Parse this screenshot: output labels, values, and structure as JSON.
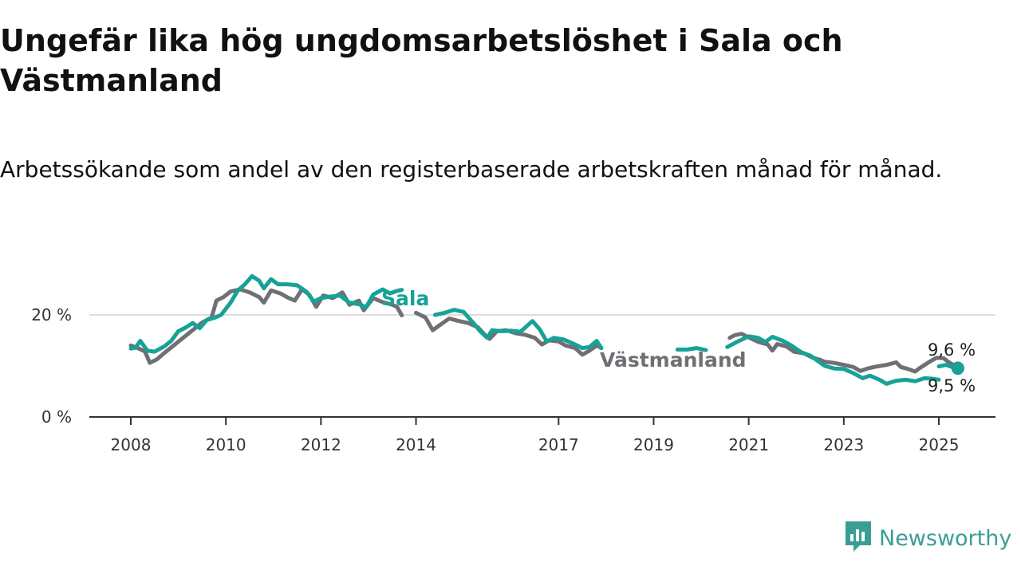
{
  "title": "Ungefär lika hög ungdomsarbetslöshet i Sala och Västmanland",
  "subtitle": "Arbetssökande som andel av den registerbaserade arbetskraften månad för månad.",
  "brand": {
    "name": "Newsworthy",
    "icon": "newsworthy-logo-icon",
    "color": "#3a9e95"
  },
  "chart_data": {
    "type": "line",
    "title": "Ungefär lika hög ungdomsarbetslöshet i Sala och Västmanland",
    "subtitle": "Arbetssökande som andel av den registerbaserade arbetskraften månad för månad.",
    "xlabel": "",
    "ylabel": "",
    "x_range": [
      2008,
      2026.2
    ],
    "ylim": [
      0,
      30
    ],
    "grid": true,
    "legend": "direct labels on lines",
    "x_ticks": [
      {
        "value": 2008,
        "label": "2008"
      },
      {
        "value": 2010,
        "label": "2010"
      },
      {
        "value": 2012,
        "label": "2012"
      },
      {
        "value": 2014,
        "label": "2014"
      },
      {
        "value": 2017,
        "label": "2017"
      },
      {
        "value": 2019,
        "label": "2019"
      },
      {
        "value": 2021,
        "label": "2021"
      },
      {
        "value": 2023,
        "label": "2023"
      },
      {
        "value": 2025,
        "label": "2025"
      }
    ],
    "y_ticks": [
      {
        "value": 0,
        "label": "0 %"
      },
      {
        "value": 20,
        "label": "20 %"
      }
    ],
    "series": [
      {
        "name": "Västmanland",
        "color": "#6f6f74",
        "end_label": "9,6 %",
        "segments": [
          [
            [
              2008.0,
              14.0
            ],
            [
              2008.15,
              13.5
            ],
            [
              2008.3,
              12.8
            ],
            [
              2008.4,
              10.6
            ],
            [
              2008.55,
              11.3
            ],
            [
              2008.7,
              12.5
            ],
            [
              2008.9,
              14.0
            ],
            [
              2009.1,
              15.5
            ],
            [
              2009.3,
              17.0
            ],
            [
              2009.5,
              18.5
            ],
            [
              2009.7,
              19.5
            ],
            [
              2009.8,
              22.8
            ],
            [
              2009.95,
              23.5
            ],
            [
              2010.1,
              24.6
            ],
            [
              2010.3,
              25.0
            ],
            [
              2010.5,
              24.4
            ],
            [
              2010.7,
              23.5
            ],
            [
              2010.8,
              22.4
            ],
            [
              2010.95,
              24.8
            ],
            [
              2011.15,
              24.2
            ],
            [
              2011.3,
              23.4
            ],
            [
              2011.45,
              22.8
            ],
            [
              2011.6,
              25.0
            ],
            [
              2011.75,
              24.0
            ],
            [
              2011.9,
              21.6
            ],
            [
              2012.05,
              23.8
            ],
            [
              2012.25,
              23.3
            ],
            [
              2012.45,
              24.4
            ],
            [
              2012.6,
              22.0
            ],
            [
              2012.8,
              22.8
            ],
            [
              2012.9,
              20.9
            ],
            [
              2013.1,
              23.3
            ],
            [
              2013.3,
              22.5
            ],
            [
              2013.5,
              22.0
            ],
            [
              2013.6,
              21.6
            ],
            [
              2013.7,
              19.9
            ]
          ],
          [
            [
              2014.0,
              20.4
            ],
            [
              2014.2,
              19.5
            ],
            [
              2014.35,
              17.0
            ],
            [
              2014.5,
              18.0
            ],
            [
              2014.7,
              19.3
            ],
            [
              2014.9,
              18.8
            ],
            [
              2015.1,
              18.4
            ],
            [
              2015.3,
              17.6
            ],
            [
              2015.45,
              16.1
            ],
            [
              2015.55,
              15.3
            ],
            [
              2015.7,
              16.8
            ],
            [
              2015.9,
              17.0
            ],
            [
              2016.1,
              16.4
            ],
            [
              2016.3,
              16.1
            ],
            [
              2016.5,
              15.5
            ],
            [
              2016.65,
              14.2
            ],
            [
              2016.8,
              15.0
            ],
            [
              2017.0,
              14.8
            ],
            [
              2017.15,
              14.0
            ],
            [
              2017.35,
              13.5
            ],
            [
              2017.5,
              12.2
            ],
            [
              2017.65,
              13.0
            ],
            [
              2017.8,
              14.0
            ],
            [
              2017.9,
              13.5
            ]
          ],
          [
            [
              2020.6,
              15.5
            ],
            [
              2020.7,
              16.0
            ],
            [
              2020.85,
              16.3
            ],
            [
              2021.0,
              15.6
            ],
            [
              2021.2,
              14.7
            ],
            [
              2021.4,
              14.2
            ],
            [
              2021.5,
              13.0
            ],
            [
              2021.6,
              14.3
            ],
            [
              2021.8,
              13.8
            ],
            [
              2021.95,
              12.8
            ],
            [
              2022.15,
              12.5
            ],
            [
              2022.35,
              11.6
            ],
            [
              2022.5,
              11.2
            ],
            [
              2022.6,
              10.8
            ],
            [
              2022.8,
              10.6
            ],
            [
              2023.0,
              10.2
            ],
            [
              2023.2,
              9.8
            ],
            [
              2023.35,
              9.0
            ],
            [
              2023.5,
              9.5
            ],
            [
              2023.7,
              9.9
            ],
            [
              2023.9,
              10.2
            ],
            [
              2024.1,
              10.7
            ],
            [
              2024.2,
              9.8
            ],
            [
              2024.35,
              9.4
            ],
            [
              2024.5,
              8.9
            ],
            [
              2024.6,
              9.6
            ],
            [
              2024.8,
              10.8
            ],
            [
              2024.95,
              11.6
            ],
            [
              2025.1,
              11.5
            ],
            [
              2025.2,
              10.8
            ],
            [
              2025.4,
              9.6
            ]
          ]
        ],
        "end_point": [
          2025.4,
          9.6
        ]
      },
      {
        "name": "Sala",
        "color": "#17a297",
        "end_label": "9,5 %",
        "segments": [
          [
            [
              2008.0,
              13.4
            ],
            [
              2008.1,
              13.6
            ],
            [
              2008.2,
              14.9
            ],
            [
              2008.35,
              13.0
            ],
            [
              2008.5,
              12.8
            ],
            [
              2008.7,
              13.8
            ],
            [
              2008.85,
              14.9
            ],
            [
              2009.0,
              16.8
            ],
            [
              2009.15,
              17.5
            ],
            [
              2009.3,
              18.4
            ],
            [
              2009.45,
              17.4
            ],
            [
              2009.6,
              19.0
            ],
            [
              2009.75,
              19.4
            ],
            [
              2009.9,
              20.0
            ],
            [
              2010.1,
              22.4
            ],
            [
              2010.25,
              24.8
            ],
            [
              2010.4,
              26.0
            ],
            [
              2010.55,
              27.6
            ],
            [
              2010.7,
              26.7
            ],
            [
              2010.8,
              25.2
            ],
            [
              2010.95,
              27.0
            ],
            [
              2011.1,
              26.0
            ],
            [
              2011.3,
              26.0
            ],
            [
              2011.5,
              25.8
            ],
            [
              2011.7,
              24.5
            ],
            [
              2011.85,
              22.6
            ],
            [
              2012.0,
              23.3
            ],
            [
              2012.2,
              23.6
            ],
            [
              2012.4,
              23.8
            ],
            [
              2012.6,
              22.4
            ],
            [
              2012.8,
              22.1
            ],
            [
              2012.95,
              21.5
            ],
            [
              2013.1,
              24.0
            ],
            [
              2013.3,
              25.0
            ],
            [
              2013.45,
              24.2
            ],
            [
              2013.6,
              24.7
            ],
            [
              2013.7,
              24.9
            ]
          ],
          [
            [
              2014.4,
              20.0
            ],
            [
              2014.6,
              20.4
            ],
            [
              2014.8,
              21.0
            ],
            [
              2015.0,
              20.6
            ],
            [
              2015.2,
              18.5
            ],
            [
              2015.35,
              16.8
            ],
            [
              2015.5,
              15.5
            ],
            [
              2015.6,
              17.0
            ],
            [
              2015.8,
              16.8
            ],
            [
              2016.0,
              16.9
            ],
            [
              2016.2,
              16.7
            ],
            [
              2016.45,
              18.8
            ],
            [
              2016.6,
              17.2
            ],
            [
              2016.75,
              14.8
            ],
            [
              2016.9,
              15.5
            ],
            [
              2017.1,
              15.2
            ],
            [
              2017.3,
              14.4
            ],
            [
              2017.5,
              13.5
            ],
            [
              2017.65,
              13.7
            ],
            [
              2017.8,
              14.9
            ],
            [
              2017.9,
              13.5
            ]
          ],
          [
            [
              2019.5,
              13.2
            ],
            [
              2019.7,
              13.2
            ],
            [
              2019.9,
              13.5
            ],
            [
              2020.1,
              13.1
            ]
          ],
          [
            [
              2020.55,
              13.7
            ],
            [
              2020.75,
              14.7
            ],
            [
              2021.0,
              15.8
            ],
            [
              2021.2,
              15.5
            ],
            [
              2021.35,
              14.7
            ],
            [
              2021.5,
              15.7
            ],
            [
              2021.7,
              15.0
            ],
            [
              2021.9,
              14.0
            ],
            [
              2022.1,
              12.7
            ],
            [
              2022.3,
              12.0
            ],
            [
              2022.45,
              11.0
            ],
            [
              2022.6,
              10.0
            ],
            [
              2022.8,
              9.5
            ],
            [
              2023.0,
              9.4
            ],
            [
              2023.2,
              8.6
            ],
            [
              2023.4,
              7.6
            ],
            [
              2023.55,
              8.1
            ],
            [
              2023.75,
              7.3
            ],
            [
              2023.9,
              6.5
            ],
            [
              2024.1,
              7.1
            ],
            [
              2024.3,
              7.3
            ],
            [
              2024.5,
              7.0
            ],
            [
              2024.7,
              7.6
            ],
            [
              2024.85,
              7.5
            ],
            [
              2025.0,
              7.3
            ]
          ],
          [
            [
              2025.0,
              9.9
            ],
            [
              2025.15,
              10.2
            ],
            [
              2025.3,
              9.7
            ],
            [
              2025.4,
              9.5
            ]
          ]
        ],
        "end_point": [
          2025.4,
          9.5
        ]
      }
    ]
  }
}
